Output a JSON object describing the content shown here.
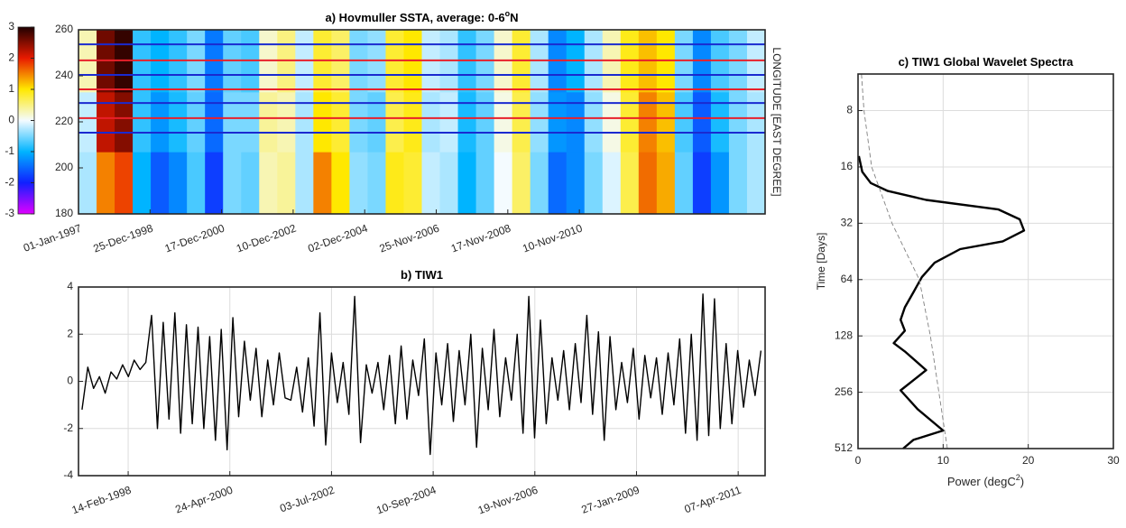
{
  "chart_data": [
    {
      "type": "heatmap",
      "title": "a) Hovmuller SSTA, average: 0-6",
      "title_superscript": "o",
      "title_suffix": "N",
      "ylabel": "LONGITUDE [EAST DEGREE]",
      "xlim": [
        1997,
        2016
      ],
      "ylim": [
        180,
        260
      ],
      "xticks": [
        {
          "value": 1997,
          "label": "01-Jan-1997"
        },
        {
          "value": 1998.98,
          "label": "25-Dec-1998"
        },
        {
          "value": 2000.96,
          "label": "17-Dec-2000"
        },
        {
          "value": 2002.94,
          "label": "10-Dec-2002"
        },
        {
          "value": 2004.92,
          "label": "02-Dec-2004"
        },
        {
          "value": 2006.9,
          "label": "25-Nov-2006"
        },
        {
          "value": 2008.88,
          "label": "17-Nov-2008"
        },
        {
          "value": 2010.86,
          "label": "10-Nov-2010"
        }
      ],
      "yticks": [
        180,
        200,
        220,
        240,
        260
      ],
      "grid": false,
      "clim": [
        -3,
        3
      ],
      "cticks": [
        -3,
        -2,
        -1,
        0,
        1,
        2,
        3
      ],
      "colormap": [
        "#e000ff",
        "#1020ff",
        "#00b4ff",
        "#f4fbff",
        "#ffe800",
        "#e81a00",
        "#200000"
      ],
      "x_edges": [
        1997,
        1997.5,
        1998,
        1998.5,
        1999,
        1999.5,
        2000,
        2000.5,
        2001,
        2001.5,
        2002,
        2002.5,
        2003,
        2003.5,
        2004,
        2004.5,
        2005,
        2005.5,
        2006,
        2006.5,
        2007,
        2007.5,
        2008,
        2008.5,
        2009,
        2009.5,
        2010,
        2010.5,
        2011,
        2011.5,
        2012,
        2012.5,
        2013,
        2013.5,
        2014,
        2014.5,
        2015,
        2015.5,
        2016
      ],
      "y_edges": [
        180,
        207,
        233,
        260
      ],
      "z": [
        [
          -0.3,
          1.5,
          1.8,
          -1.0,
          -1.6,
          -1.3,
          -0.7,
          -1.8,
          -0.5,
          -0.6,
          0.3,
          0.4,
          -0.3,
          1.5,
          1.0,
          -0.4,
          -0.5,
          0.9,
          0.8,
          -0.2,
          -0.3,
          -1.0,
          -0.6,
          0.0,
          0.6,
          -0.5,
          -1.5,
          -1.3,
          -0.5,
          -0.1,
          0.7,
          1.6,
          1.3,
          -0.6,
          -1.8,
          -1.2,
          -0.5,
          -0.3
        ],
        [
          -0.2,
          2.2,
          2.5,
          -0.8,
          -1.2,
          -0.9,
          -0.6,
          -1.5,
          -0.5,
          -0.5,
          0.4,
          0.3,
          -0.3,
          1.0,
          0.8,
          -0.5,
          -0.6,
          0.7,
          0.9,
          -0.3,
          -0.2,
          -0.9,
          -0.6,
          0.1,
          0.7,
          -0.4,
          -1.2,
          -1.3,
          -0.4,
          0.1,
          0.8,
          1.5,
          1.2,
          -0.7,
          -1.6,
          -0.9,
          -0.5,
          -0.3
        ],
        [
          0.3,
          2.6,
          2.9,
          -0.8,
          -1.0,
          -0.8,
          -0.5,
          -1.4,
          -0.6,
          -0.7,
          0.2,
          0.5,
          -0.2,
          0.8,
          0.6,
          -0.5,
          -0.4,
          0.8,
          1.0,
          -0.2,
          -0.3,
          -0.8,
          -0.5,
          0.2,
          0.8,
          -0.3,
          -1.3,
          -1.0,
          -0.3,
          0.3,
          0.9,
          1.2,
          1.0,
          -0.5,
          -1.3,
          -0.7,
          -0.5,
          -0.2
        ]
      ],
      "hlines": [
        {
          "value": 253.7,
          "color": "#1a2ad0"
        },
        {
          "value": 246.7,
          "color": "#e8202a"
        },
        {
          "value": 240.4,
          "color": "#1a2ad0"
        },
        {
          "value": 234.1,
          "color": "#e8202a"
        },
        {
          "value": 228.2,
          "color": "#1a2ad0"
        },
        {
          "value": 221.6,
          "color": "#e8202a"
        },
        {
          "value": 215.3,
          "color": "#1a2ad0"
        }
      ]
    },
    {
      "type": "line",
      "title": "b) TIW1",
      "xlim": [
        1997.05,
        2011.84
      ],
      "ylim": [
        -4,
        4
      ],
      "xticks": [
        {
          "value": 1998.12,
          "label": "14-Feb-1998"
        },
        {
          "value": 2000.31,
          "label": "24-Apr-2000"
        },
        {
          "value": 2002.5,
          "label": "03-Jul-2002"
        },
        {
          "value": 2004.69,
          "label": "10-Sep-2004"
        },
        {
          "value": 2006.88,
          "label": "19-Nov-2006"
        },
        {
          "value": 2009.07,
          "label": "27-Jan-2009"
        },
        {
          "value": 2011.26,
          "label": "07-Apr-2011"
        }
      ],
      "yticks": [
        -4,
        -2,
        0,
        2,
        4
      ],
      "grid": true,
      "x": [
        1997.125,
        1997.25,
        1997.375,
        1997.5,
        1997.625,
        1997.75,
        1997.875,
        1998,
        1998.125,
        1998.25,
        1998.375,
        1998.5,
        1998.625,
        1998.75,
        1998.875,
        1999,
        1999.125,
        1999.25,
        1999.375,
        1999.5,
        1999.625,
        1999.75,
        1999.875,
        2000,
        2000.125,
        2000.25,
        2000.375,
        2000.5,
        2000.625,
        2000.75,
        2000.875,
        2001,
        2001.125,
        2001.25,
        2001.375,
        2001.5,
        2001.625,
        2001.75,
        2001.875,
        2002,
        2002.125,
        2002.25,
        2002.375,
        2002.5,
        2002.625,
        2002.75,
        2002.875,
        2003,
        2003.125,
        2003.25,
        2003.375,
        2003.5,
        2003.625,
        2003.75,
        2003.875,
        2004,
        2004.125,
        2004.25,
        2004.375,
        2004.5,
        2004.625,
        2004.75,
        2004.875,
        2005,
        2005.125,
        2005.25,
        2005.375,
        2005.5,
        2005.625,
        2005.75,
        2005.875,
        2006,
        2006.125,
        2006.25,
        2006.375,
        2006.5,
        2006.625,
        2006.75,
        2006.875,
        2007,
        2007.125,
        2007.25,
        2007.375,
        2007.5,
        2007.625,
        2007.75,
        2007.875,
        2008,
        2008.125,
        2008.25,
        2008.375,
        2008.5,
        2008.625,
        2008.75,
        2008.875,
        2009,
        2009.125,
        2009.25,
        2009.375,
        2009.5,
        2009.625,
        2009.75,
        2009.875,
        2010,
        2010.125,
        2010.25,
        2010.375,
        2010.5,
        2010.625,
        2010.75,
        2010.875,
        2011,
        2011.125,
        2011.25,
        2011.375,
        2011.5,
        2011.625,
        2011.75
      ],
      "series": [
        {
          "color": "#000000",
          "style": "solid",
          "values": [
            -1.2,
            0.6,
            -0.3,
            0.2,
            -0.5,
            0.4,
            0.1,
            0.7,
            0.2,
            0.9,
            0.5,
            0.8,
            2.8,
            -2.0,
            2.5,
            -1.6,
            2.9,
            -2.2,
            2.4,
            -1.8,
            2.3,
            -2.0,
            1.9,
            -2.5,
            2.2,
            -2.9,
            2.7,
            -1.5,
            1.7,
            -0.8,
            1.4,
            -1.5,
            0.9,
            -1.0,
            1.2,
            -0.7,
            -0.8,
            0.6,
            -1.3,
            1.0,
            -1.9,
            2.9,
            -2.7,
            1.2,
            -0.9,
            0.8,
            -1.4,
            3.6,
            -2.6,
            0.7,
            -0.5,
            0.8,
            -1.2,
            1.1,
            -1.8,
            1.5,
            -1.6,
            0.9,
            -0.6,
            1.8,
            -3.1,
            1.2,
            -1.0,
            1.6,
            -1.7,
            1.3,
            -1.0,
            2.0,
            -2.8,
            1.4,
            -1.2,
            2.2,
            -1.5,
            1.0,
            -0.8,
            2.0,
            -2.2,
            3.6,
            -2.4,
            2.6,
            -1.8,
            1.0,
            -0.8,
            1.3,
            -1.2,
            1.6,
            -0.9,
            2.8,
            -1.4,
            2.1,
            -2.5,
            1.9,
            -1.2,
            0.8,
            -0.9,
            1.4,
            -1.6,
            1.1,
            -0.7,
            1.0,
            -1.4,
            1.2,
            -1.0,
            1.8,
            -2.2,
            2.0,
            -2.5,
            3.7,
            -2.3,
            3.5,
            -2.0,
            1.6,
            -1.8,
            1.3,
            -1.1,
            0.9,
            -0.6,
            1.3
          ]
        }
      ]
    },
    {
      "type": "line",
      "title": "c) TIW1 Global Wavelet Spectra",
      "xlabel": "Power (degC",
      "xlabel_superscript": "2",
      "xlabel_suffix": ")",
      "ylabel": "Time [Days]",
      "xlim": [
        0,
        30
      ],
      "ylim": [
        512,
        5.1
      ],
      "log_y": true,
      "xticks": [
        0,
        10,
        20,
        30
      ],
      "yticks": [
        8,
        16,
        32,
        64,
        128,
        256,
        512
      ],
      "grid": true,
      "series": [
        {
          "color": "#000000",
          "style": "solid",
          "x": [
            0.1,
            0.5,
            1.5,
            3.5,
            8,
            16.5,
            19,
            19.5,
            17,
            12,
            9,
            7.5,
            6.5,
            5.5,
            5,
            5.5,
            4.2,
            5.5,
            8,
            5,
            7,
            10,
            6.5,
            5.3
          ],
          "values": [
            14,
            17,
            19.5,
            21.5,
            24,
            27,
            30.5,
            35,
            40,
            44,
            52,
            62,
            75,
            90,
            105,
            120,
            140,
            155,
            195,
            250,
            315,
            410,
            460,
            512
          ]
        },
        {
          "color": "#808080",
          "style": "dashed",
          "x": [
            0.4,
            0.7,
            1.6,
            4,
            7.2,
            8.5,
            9.5,
            10.5
          ],
          "values": [
            5.1,
            8,
            16,
            32,
            64,
            128,
            256,
            512
          ]
        }
      ]
    }
  ]
}
